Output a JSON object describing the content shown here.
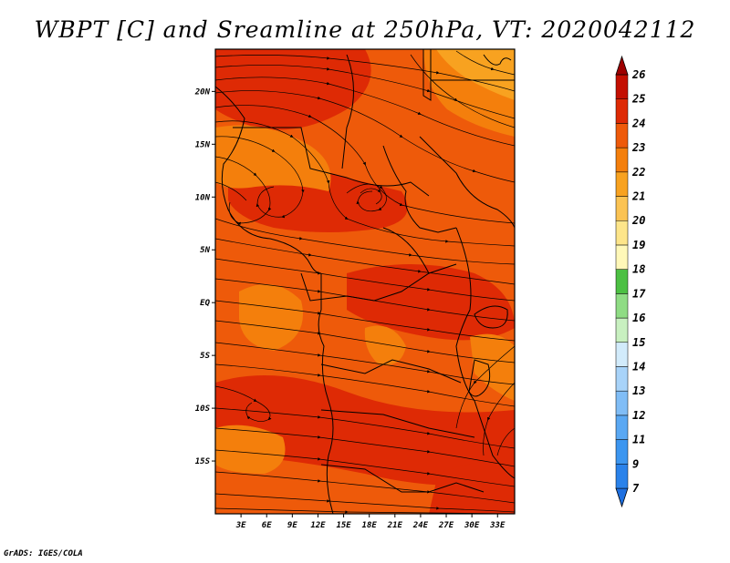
{
  "map": {
    "title": "WBPT [C] and Sreamline at 250hPa, VT: 2020042112",
    "credit": "GrADS: IGES/COLA",
    "field": "WBPT",
    "units": "C",
    "level": "250hPa",
    "valid_time": "2020042112",
    "lat_range": [
      -20,
      24
    ],
    "lon_range": [
      0,
      35
    ],
    "lat_ticks": [
      "20N",
      "15N",
      "10N",
      "5N",
      "EQ",
      "5S",
      "10S",
      "15S"
    ],
    "lon_ticks": [
      "3E",
      "6E",
      "9E",
      "12E",
      "15E",
      "18E",
      "21E",
      "24E",
      "27E",
      "30E",
      "33E"
    ]
  },
  "colorbar": {
    "labels": [
      "7",
      "9",
      "11",
      "12",
      "13",
      "14",
      "15",
      "16",
      "17",
      "18",
      "19",
      "20",
      "21",
      "22",
      "23",
      "24",
      "25",
      "26"
    ],
    "colors": [
      "#1e6fe0",
      "#2a82ea",
      "#3c96f0",
      "#5aa8f3",
      "#80bdf6",
      "#a8d3f9",
      "#d2ebfb",
      "#c8f0c0",
      "#8fdc84",
      "#4cc043",
      "#fff8b8",
      "#fde58a",
      "#fbc353",
      "#f8a220",
      "#f47f0c",
      "#ee5a0a",
      "#de2a05",
      "#c40f02",
      "#9e0000"
    ]
  },
  "colors": {
    "field_main": "#ee5a0a",
    "field_high": "#de2a05",
    "field_low": "#f47f0c",
    "field_lowest": "#f8a220"
  }
}
